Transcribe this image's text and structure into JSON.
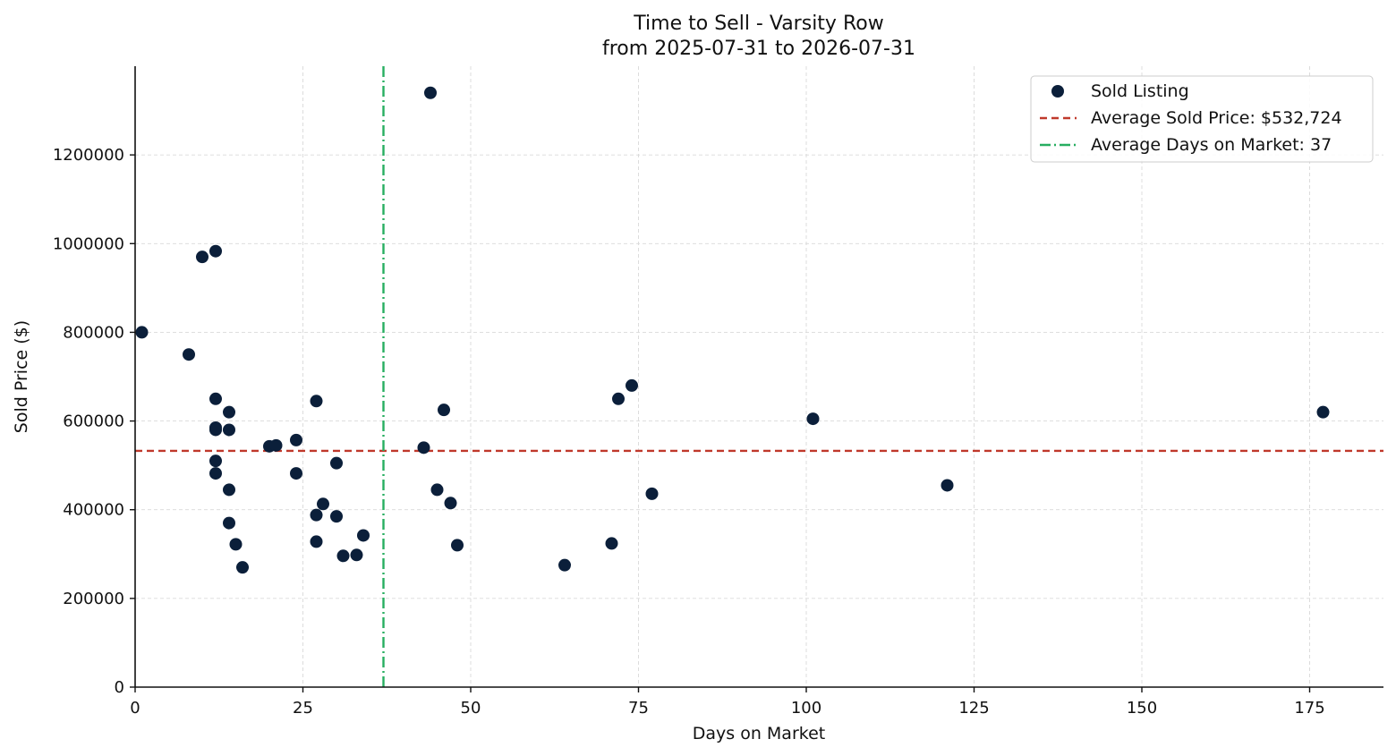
{
  "chart_data": {
    "type": "scatter",
    "title": "Time to Sell - Varsity Row",
    "subtitle": "from 2025-07-31 to 2026-07-31",
    "xlabel": "Days on Market",
    "ylabel": "Sold Price ($)",
    "xlim": [
      0,
      186
    ],
    "ylim": [
      0,
      1400000
    ],
    "xticks": [
      0,
      25,
      50,
      75,
      100,
      125,
      150,
      175
    ],
    "yticks": [
      0,
      200000,
      400000,
      600000,
      800000,
      1000000,
      1200000
    ],
    "grid": true,
    "legend_position": "top-right",
    "colors": {
      "points": "#0b1f3a",
      "avg_price_line": "#c0392b",
      "avg_days_line": "#27ae60"
    },
    "series": [
      {
        "name": "Sold Listing",
        "x": [
          1,
          8,
          10,
          12,
          12,
          12,
          12,
          12,
          12,
          14,
          14,
          14,
          14,
          15,
          16,
          20,
          21,
          24,
          24,
          27,
          27,
          27,
          28,
          30,
          30,
          31,
          33,
          34,
          43,
          44,
          45,
          46,
          47,
          48,
          64,
          71,
          72,
          74,
          77,
          101,
          121,
          177
        ],
        "y": [
          800000,
          750000,
          970000,
          983000,
          650000,
          585000,
          580000,
          510000,
          482000,
          620000,
          580000,
          445000,
          370000,
          322000,
          270000,
          543000,
          545000,
          557000,
          482000,
          645000,
          388000,
          328000,
          413000,
          505000,
          385000,
          296000,
          298000,
          342000,
          540000,
          1340000,
          445000,
          625000,
          415000,
          320000,
          275000,
          324000,
          650000,
          680000,
          436000,
          605000,
          455000,
          620000
        ]
      }
    ],
    "reference_lines": [
      {
        "name": "Average Sold Price: $532,724",
        "orientation": "horizontal",
        "value": 532724,
        "style": "dashed"
      },
      {
        "name": "Average Days on Market: 37",
        "orientation": "vertical",
        "value": 37,
        "style": "dashdot"
      }
    ]
  }
}
